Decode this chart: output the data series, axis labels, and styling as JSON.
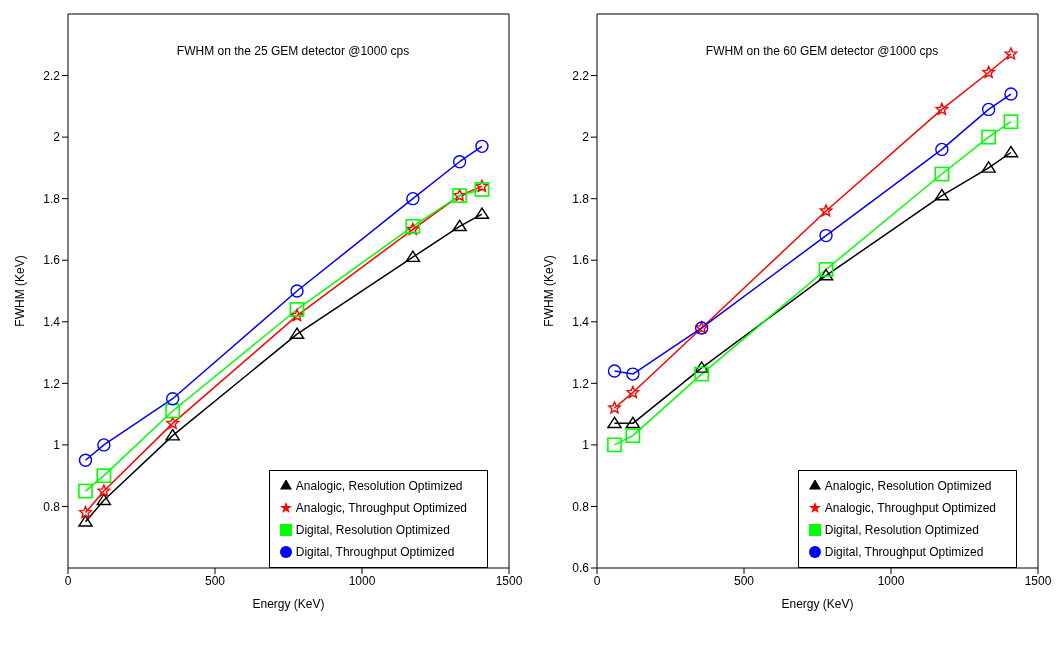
{
  "chart_data": [
    {
      "type": "line",
      "title": "FWHM on the 25 GEM detector @1000 cps",
      "xlabel": "Energy (KeV)",
      "ylabel": "FWHM (KeV)",
      "x": [
        59.5,
        122,
        356,
        779,
        1173,
        1332,
        1408
      ],
      "xlim": [
        0,
        1500
      ],
      "xticks": [
        0,
        500,
        1000,
        1500
      ],
      "ylim": [
        0.6,
        2.4
      ],
      "yticks": [
        0.8,
        1,
        1.2,
        1.4,
        1.6,
        1.8,
        2,
        2.2
      ],
      "grid": false,
      "legend": "bottom right",
      "line_style": "solid",
      "series": [
        {
          "name": "Analogic, Resolution Optimized",
          "color": "#000000",
          "marker": "triangle",
          "values": [
            0.75,
            0.82,
            1.03,
            1.36,
            1.61,
            1.71,
            1.75
          ]
        },
        {
          "name": "Analogic, Throughput Optimized",
          "color": "#ff0000",
          "marker": "star",
          "values": [
            0.78,
            0.85,
            1.07,
            1.42,
            1.7,
            1.81,
            1.84
          ]
        },
        {
          "name": "Digital, Resolution Optimized",
          "color": "#00ff00",
          "marker": "square",
          "values": [
            0.85,
            0.9,
            1.11,
            1.44,
            1.71,
            1.81,
            1.83
          ]
        },
        {
          "name": "Digital, Throughput Optimized",
          "color": "#0000ff",
          "marker": "circle",
          "values": [
            0.95,
            1.0,
            1.15,
            1.5,
            1.8,
            1.92,
            1.97
          ]
        }
      ]
    },
    {
      "type": "line",
      "title": "FWHM on the 60 GEM detector @1000 cps",
      "xlabel": "Energy (KeV)",
      "ylabel": "FWHM (KeV)",
      "x": [
        59.5,
        122,
        356,
        779,
        1173,
        1332,
        1408
      ],
      "xlim": [
        0,
        1500
      ],
      "xticks": [
        0,
        500,
        1000,
        1500
      ],
      "ylim": [
        0.6,
        2.4
      ],
      "yticks": [
        0.6,
        0.8,
        1,
        1.2,
        1.4,
        1.6,
        1.8,
        2,
        2.2
      ],
      "grid": false,
      "legend": "bottom right",
      "line_style": "solid",
      "series": [
        {
          "name": "Analogic, Resolution Optimized",
          "color": "#000000",
          "marker": "triangle",
          "values": [
            1.07,
            1.07,
            1.25,
            1.55,
            1.81,
            1.9,
            1.95
          ]
        },
        {
          "name": "Analogic, Throughput Optimized",
          "color": "#ff0000",
          "marker": "star",
          "values": [
            1.12,
            1.17,
            1.38,
            1.76,
            2.09,
            2.21,
            2.27
          ]
        },
        {
          "name": "Digital, Resolution Optimized",
          "color": "#00ff00",
          "marker": "square",
          "values": [
            1.0,
            1.03,
            1.23,
            1.57,
            1.88,
            2.0,
            2.05
          ]
        },
        {
          "name": "Digital, Throughput Optimized",
          "color": "#0000ff",
          "marker": "circle",
          "values": [
            1.24,
            1.23,
            1.38,
            1.68,
            1.96,
            2.09,
            2.14
          ]
        }
      ]
    }
  ]
}
